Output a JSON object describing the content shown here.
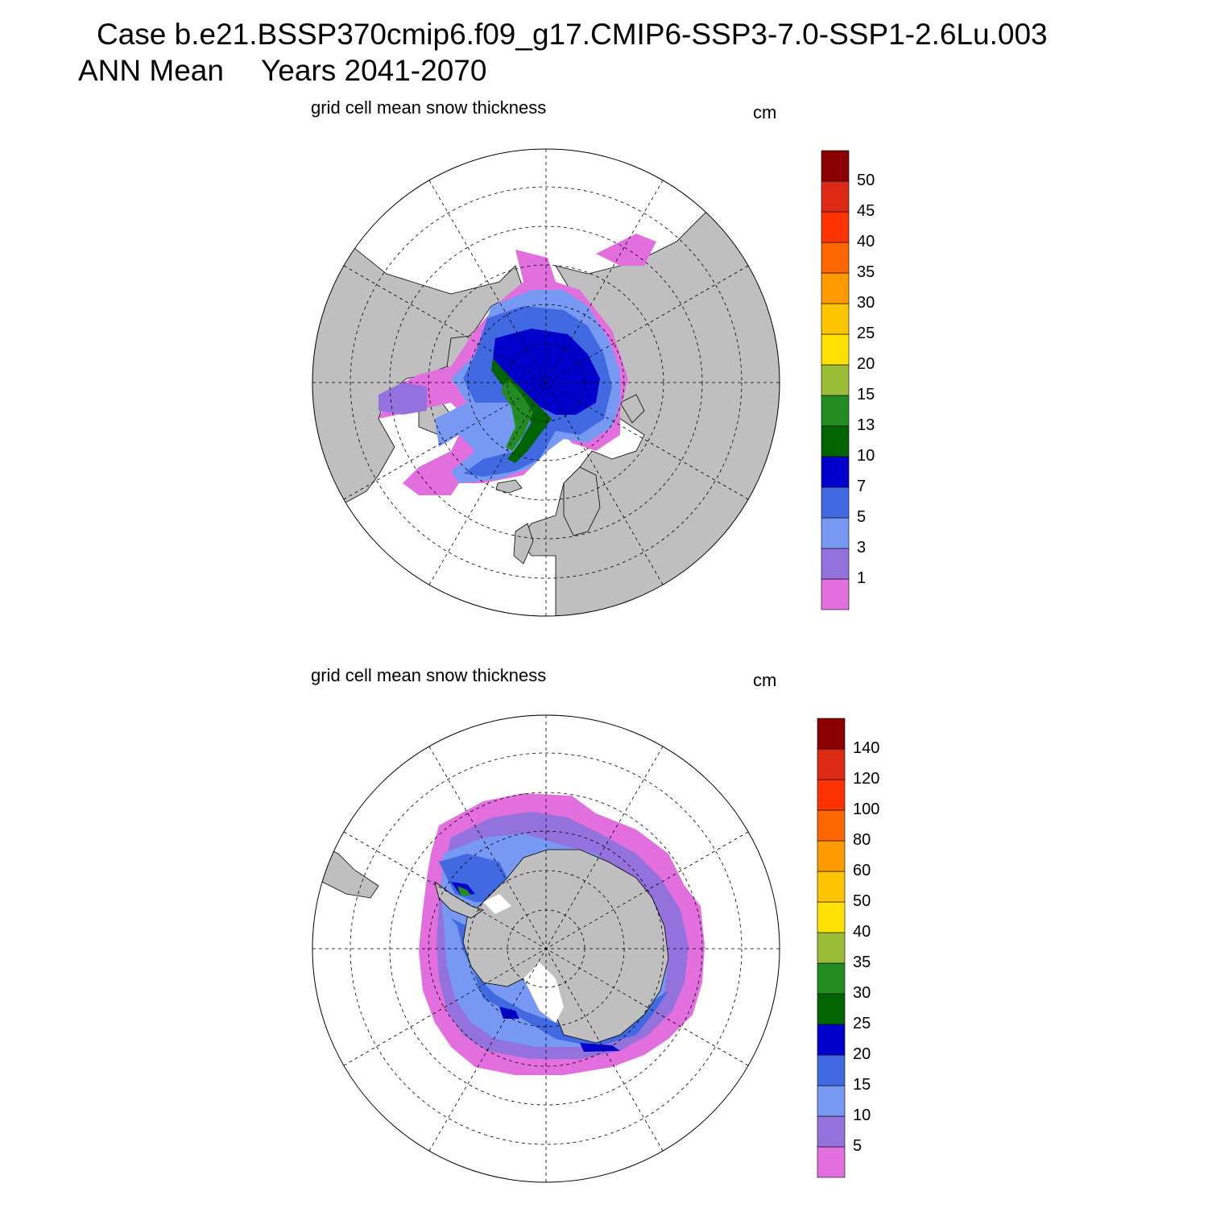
{
  "header": {
    "case_line": "Case b.e21.BSSP370cmip6.f09_g17.CMIP6-SSP3-7.0-SSP1-2.6Lu.003",
    "period_label": "ANN Mean",
    "years_label": "Years 2041-2070"
  },
  "panels": [
    {
      "title": "grid cell mean snow thickness",
      "units": "cm",
      "hemisphere": "north",
      "colorbar": {
        "levels": [
          "1",
          "3",
          "5",
          "7",
          "10",
          "13",
          "15",
          "20",
          "25",
          "30",
          "35",
          "40",
          "45",
          "50"
        ],
        "colors": [
          "#e36fdf",
          "#9472de",
          "#7799f4",
          "#4169e1",
          "#0000cd",
          "#006400",
          "#228b22",
          "#9abd35",
          "#ffe000",
          "#ffc400",
          "#ff9900",
          "#ff6600",
          "#ff3300",
          "#dc2a14",
          "#8b0000"
        ]
      }
    },
    {
      "title": "grid cell mean snow thickness",
      "units": "cm",
      "hemisphere": "south",
      "colorbar": {
        "levels": [
          "5",
          "10",
          "15",
          "20",
          "25",
          "30",
          "35",
          "40",
          "50",
          "60",
          "80",
          "100",
          "120",
          "140"
        ],
        "colors": [
          "#e36fdf",
          "#9472de",
          "#7799f4",
          "#4169e1",
          "#0000cd",
          "#006400",
          "#228b22",
          "#9abd35",
          "#ffe000",
          "#ffc400",
          "#ff9900",
          "#ff6600",
          "#ff3300",
          "#dc2a14",
          "#8b0000"
        ]
      }
    }
  ],
  "colors": {
    "land": "#bfbfbf",
    "ocean": "#ffffff",
    "outline": "#000000"
  }
}
